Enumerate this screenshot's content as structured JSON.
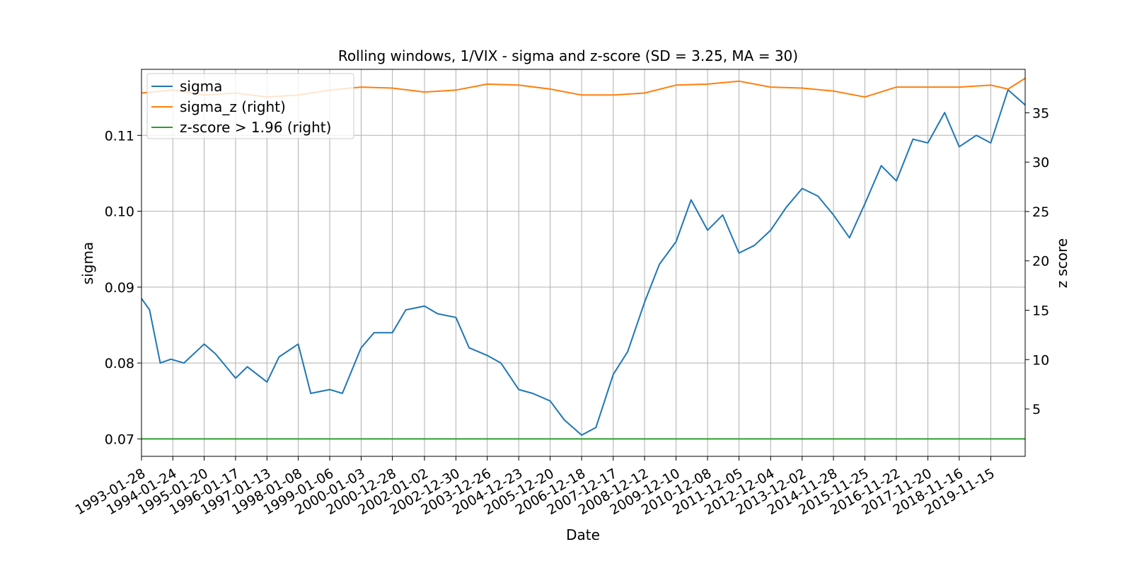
{
  "chart_data": {
    "type": "line",
    "title": "Rolling windows, 1/VIX - sigma and z-score (SD = 3.25, MA = 30)",
    "xlabel": "Date",
    "ylabel_left": "sigma",
    "ylabel_right": "z score",
    "x_ticks": [
      "1993-01-28",
      "1994-01-24",
      "1995-01-20",
      "1996-01-17",
      "1997-01-13",
      "1998-01-08",
      "1999-01-06",
      "2000-01-03",
      "2000-12-28",
      "2002-01-02",
      "2002-12-30",
      "2003-12-26",
      "2004-12-23",
      "2005-12-20",
      "2006-12-18",
      "2007-12-17",
      "2008-12-12",
      "2009-12-10",
      "2010-12-08",
      "2011-12-05",
      "2012-12-04",
      "2013-12-02",
      "2014-11-28",
      "2015-11-25",
      "2016-11-22",
      "2017-11-20",
      "2018-11-16",
      "2019-11-15"
    ],
    "xlim": [
      "1993-01-28",
      "2020-12-15"
    ],
    "y_left_ticks": [
      "0.07",
      "0.08",
      "0.09",
      "0.10",
      "0.11"
    ],
    "y_left_lim": [
      0.0677,
      0.1187
    ],
    "y_right_ticks": [
      "5",
      "10",
      "15",
      "20",
      "25",
      "30",
      "35"
    ],
    "y_right_lim": [
      0.2,
      39.4
    ],
    "grid": true,
    "legend_position": "top-left",
    "series": [
      {
        "name": "sigma",
        "axis": "left",
        "color": "#1f77b4",
        "x": [
          "1993-01-28",
          "1993-05-01",
          "1993-09-01",
          "1994-01-01",
          "1994-06-01",
          "1995-01-20",
          "1995-06-01",
          "1996-01-17",
          "1996-06-01",
          "1997-01-13",
          "1997-06-01",
          "1998-01-08",
          "1998-06-01",
          "1999-01-06",
          "1999-06-01",
          "2000-01-03",
          "2000-06-01",
          "2000-12-28",
          "2001-06-01",
          "2002-01-02",
          "2002-06-01",
          "2002-12-30",
          "2003-06-01",
          "2003-12-26",
          "2004-06-01",
          "2004-12-23",
          "2005-06-01",
          "2005-12-20",
          "2006-06-01",
          "2006-12-18",
          "2007-06-01",
          "2007-12-17",
          "2008-06-01",
          "2008-12-12",
          "2009-06-01",
          "2009-12-10",
          "2010-06-01",
          "2010-12-08",
          "2011-06-01",
          "2011-12-05",
          "2012-06-01",
          "2012-12-04",
          "2013-06-01",
          "2013-12-02",
          "2014-06-01",
          "2014-11-28",
          "2015-06-01",
          "2015-11-25",
          "2016-06-01",
          "2016-11-22",
          "2017-06-01",
          "2017-11-20",
          "2018-06-01",
          "2018-11-16",
          "2019-06-01",
          "2019-11-15",
          "2020-06-01",
          "2020-12-15"
        ],
        "y": [
          0.0885,
          0.087,
          0.08,
          0.0805,
          0.08,
          0.0825,
          0.0812,
          0.078,
          0.0795,
          0.0775,
          0.0808,
          0.0825,
          0.076,
          0.0765,
          0.076,
          0.082,
          0.084,
          0.084,
          0.087,
          0.0875,
          0.0865,
          0.086,
          0.082,
          0.081,
          0.08,
          0.0765,
          0.076,
          0.075,
          0.0725,
          0.0705,
          0.0715,
          0.0785,
          0.0815,
          0.088,
          0.093,
          0.096,
          0.1015,
          0.0975,
          0.0995,
          0.0945,
          0.0955,
          0.0975,
          0.1005,
          0.103,
          0.102,
          0.0995,
          0.0965,
          0.101,
          0.106,
          0.104,
          0.1095,
          0.109,
          0.113,
          0.1085,
          0.11,
          0.109,
          0.116,
          0.114
        ]
      },
      {
        "name": "sigma_z (right)",
        "axis": "right",
        "color": "#ff7f0e",
        "x": [
          "1993-01-28",
          "1994-01-24",
          "1995-01-20",
          "1996-01-17",
          "1997-01-13",
          "1998-01-08",
          "1999-01-06",
          "2000-01-03",
          "2000-12-28",
          "2002-01-02",
          "2002-12-30",
          "2003-12-26",
          "2004-12-23",
          "2005-12-20",
          "2006-12-18",
          "2007-12-17",
          "2008-12-12",
          "2009-12-10",
          "2010-12-08",
          "2011-12-05",
          "2012-12-04",
          "2013-12-02",
          "2014-11-28",
          "2015-11-25",
          "2016-11-22",
          "2017-11-20",
          "2018-11-16",
          "2019-11-15",
          "2020-06-01",
          "2020-12-15"
        ],
        "y": [
          37.0,
          37.3,
          36.8,
          37.0,
          36.6,
          36.8,
          37.3,
          37.6,
          37.5,
          37.1,
          37.3,
          37.9,
          37.8,
          37.4,
          36.8,
          36.8,
          37.0,
          37.8,
          37.9,
          38.2,
          37.6,
          37.5,
          37.2,
          36.6,
          37.6,
          37.6,
          37.6,
          37.8,
          37.4,
          38.5
        ]
      },
      {
        "name": "z-score > 1.96 (right)",
        "axis": "right",
        "color": "#2ca02c",
        "x": [
          "1993-01-28",
          "2020-12-15"
        ],
        "y": [
          1.96,
          1.96
        ]
      }
    ]
  }
}
